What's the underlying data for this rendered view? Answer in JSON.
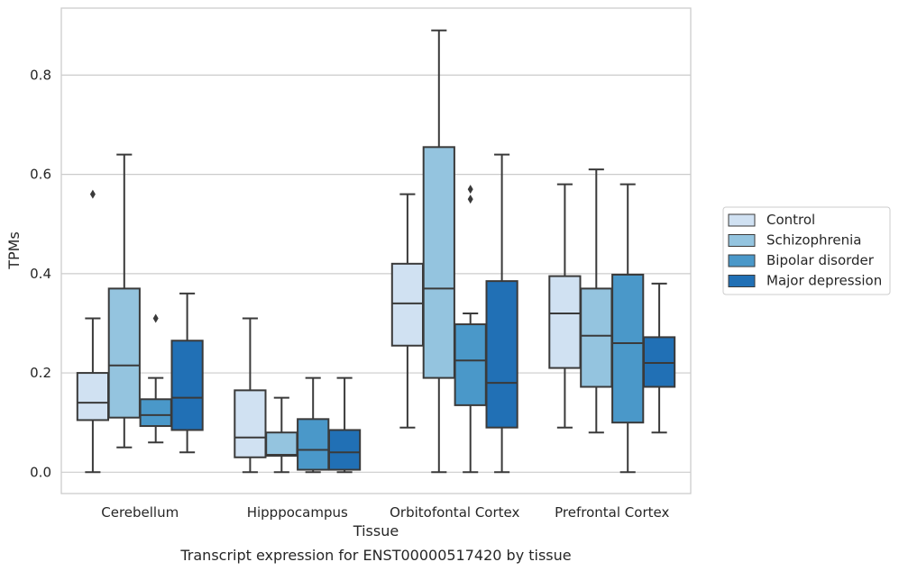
{
  "chart_data": {
    "type": "box",
    "xlabel": "Tissue",
    "ylabel": "TPMs",
    "caption": "Transcript expression for ENST00000517420 by tissue",
    "ylim": [
      -0.043,
      0.935
    ],
    "yticks": [
      0.0,
      0.2,
      0.4,
      0.6,
      0.8
    ],
    "ytick_labels": [
      "0.0",
      "0.2",
      "0.4",
      "0.6",
      "0.8"
    ],
    "grid": "horizontal",
    "legend_placement": "right",
    "categories": [
      "Cerebellum",
      "Hipppocampus",
      "Orbitofontal Cortex",
      "Prefrontal Cortex"
    ],
    "series": [
      {
        "name": "Control",
        "color": "#d0e1f2",
        "boxes": [
          {
            "whisker_low": 0.0,
            "q1": 0.105,
            "median": 0.14,
            "q3": 0.2,
            "whisker_high": 0.31,
            "outliers": [
              0.56
            ]
          },
          {
            "whisker_low": 0.0,
            "q1": 0.03,
            "median": 0.07,
            "q3": 0.165,
            "whisker_high": 0.31,
            "outliers": []
          },
          {
            "whisker_low": 0.09,
            "q1": 0.255,
            "median": 0.34,
            "q3": 0.42,
            "whisker_high": 0.56,
            "outliers": []
          },
          {
            "whisker_low": 0.09,
            "q1": 0.21,
            "median": 0.32,
            "q3": 0.395,
            "whisker_high": 0.58,
            "outliers": []
          }
        ]
      },
      {
        "name": "Schizophrenia",
        "color": "#94c4df",
        "boxes": [
          {
            "whisker_low": 0.05,
            "q1": 0.11,
            "median": 0.215,
            "q3": 0.37,
            "whisker_high": 0.64,
            "outliers": []
          },
          {
            "whisker_low": 0.0,
            "q1": 0.033,
            "median": 0.035,
            "q3": 0.08,
            "whisker_high": 0.15,
            "outliers": []
          },
          {
            "whisker_low": 0.0,
            "q1": 0.19,
            "median": 0.37,
            "q3": 0.655,
            "whisker_high": 0.89,
            "outliers": []
          },
          {
            "whisker_low": 0.08,
            "q1": 0.172,
            "median": 0.275,
            "q3": 0.37,
            "whisker_high": 0.61,
            "outliers": []
          }
        ]
      },
      {
        "name": "Bipolar disorder",
        "color": "#4a98c9",
        "boxes": [
          {
            "whisker_low": 0.06,
            "q1": 0.093,
            "median": 0.115,
            "q3": 0.147,
            "whisker_high": 0.19,
            "outliers": [
              0.31
            ]
          },
          {
            "whisker_low": 0.0,
            "q1": 0.005,
            "median": 0.045,
            "q3": 0.107,
            "whisker_high": 0.19,
            "outliers": []
          },
          {
            "whisker_low": 0.0,
            "q1": 0.135,
            "median": 0.225,
            "q3": 0.298,
            "whisker_high": 0.32,
            "outliers": [
              0.55,
              0.57
            ]
          },
          {
            "whisker_low": 0.0,
            "q1": 0.1,
            "median": 0.26,
            "q3": 0.398,
            "whisker_high": 0.58,
            "outliers": []
          }
        ]
      },
      {
        "name": "Major depression",
        "color": "#2170b5",
        "boxes": [
          {
            "whisker_low": 0.04,
            "q1": 0.085,
            "median": 0.15,
            "q3": 0.265,
            "whisker_high": 0.36,
            "outliers": []
          },
          {
            "whisker_low": 0.0,
            "q1": 0.005,
            "median": 0.04,
            "q3": 0.085,
            "whisker_high": 0.19,
            "outliers": []
          },
          {
            "whisker_low": 0.0,
            "q1": 0.09,
            "median": 0.18,
            "q3": 0.385,
            "whisker_high": 0.64,
            "outliers": []
          },
          {
            "whisker_low": 0.08,
            "q1": 0.172,
            "median": 0.22,
            "q3": 0.272,
            "whisker_high": 0.38,
            "outliers": []
          }
        ]
      }
    ]
  }
}
